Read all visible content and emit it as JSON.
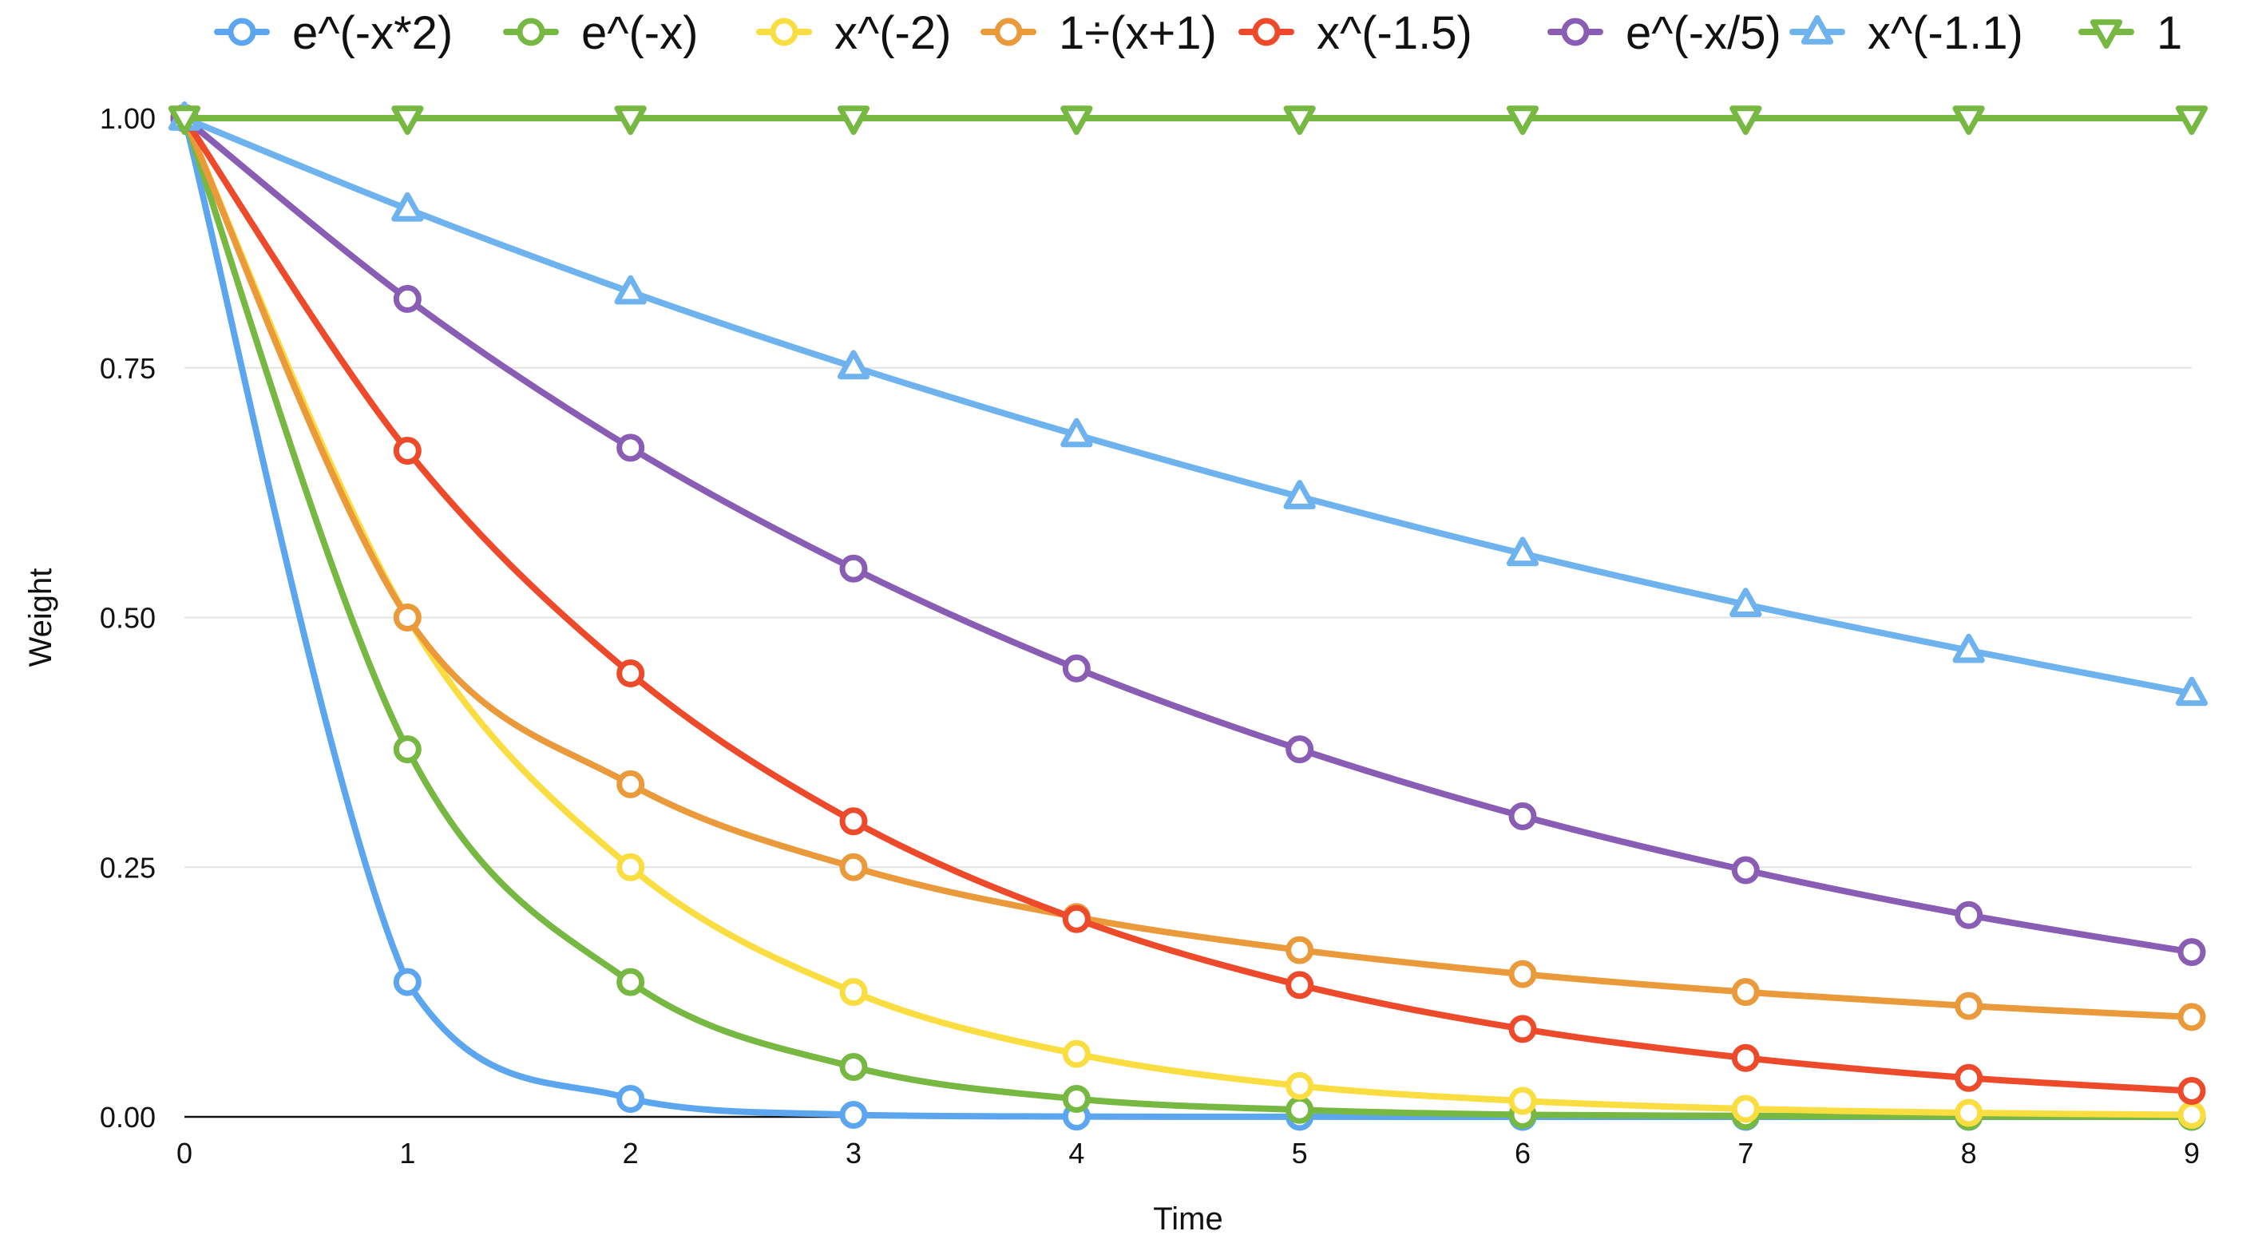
{
  "chart_data": {
    "type": "line",
    "title": "",
    "xlabel": "Time",
    "ylabel": "Weight",
    "x": [
      0,
      1,
      2,
      3,
      4,
      5,
      6,
      7,
      8,
      9
    ],
    "xlim": [
      0,
      9
    ],
    "ylim": [
      0,
      1
    ],
    "yticks": [
      "0.00",
      "0.25",
      "0.50",
      "0.75",
      "1.00"
    ],
    "ytick_values": [
      0,
      0.25,
      0.5,
      0.75,
      1
    ],
    "xticks": [
      "0",
      "1",
      "2",
      "3",
      "4",
      "5",
      "6",
      "7",
      "8",
      "9"
    ],
    "grid": "horizontal",
    "legend_position": "top",
    "series": [
      {
        "name": "e^(-x*2)",
        "color": "#5ba6ee",
        "marker": "circle",
        "values": [
          1,
          0.135,
          0.018,
          0.002,
          0.0003,
          5e-05,
          0,
          0,
          0,
          0
        ]
      },
      {
        "name": "e^(-x)",
        "color": "#76b841",
        "marker": "circle",
        "values": [
          1,
          0.368,
          0.135,
          0.05,
          0.018,
          0.007,
          0.002,
          0.001,
          0.0003,
          0.0001
        ]
      },
      {
        "name": "x^(-2)",
        "color": "#fadd40",
        "marker": "circle",
        "values": [
          1,
          0.5,
          0.25,
          0.125,
          0.063,
          0.031,
          0.016,
          0.008,
          0.004,
          0.002
        ]
      },
      {
        "name": "1÷(x+1)",
        "color": "#ea9a3a",
        "marker": "circle",
        "values": [
          1,
          0.5,
          0.333,
          0.25,
          0.2,
          0.167,
          0.143,
          0.125,
          0.111,
          0.1
        ]
      },
      {
        "name": "x^(-1.5)",
        "color": "#ec4a2b",
        "marker": "circle",
        "values": [
          1,
          0.667,
          0.444,
          0.296,
          0.198,
          0.132,
          0.088,
          0.059,
          0.039,
          0.026
        ]
      },
      {
        "name": "e^(-x/5)",
        "color": "#8a5db4",
        "marker": "circle",
        "values": [
          1,
          0.819,
          0.67,
          0.549,
          0.449,
          0.368,
          0.301,
          0.247,
          0.202,
          0.165
        ]
      },
      {
        "name": "x^(-1.1)",
        "color": "#6fb3ee",
        "marker": "triangle-up",
        "values": [
          1,
          0.909,
          0.826,
          0.751,
          0.683,
          0.621,
          0.564,
          0.513,
          0.467,
          0.424
        ]
      },
      {
        "name": "1",
        "color": "#76b841",
        "marker": "triangle-down",
        "values": [
          1,
          1,
          1,
          1,
          1,
          1,
          1,
          1,
          1,
          1
        ]
      }
    ]
  }
}
